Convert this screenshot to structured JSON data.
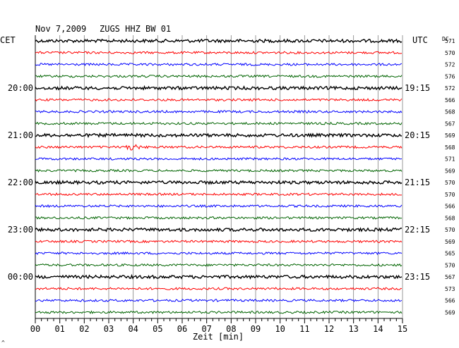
{
  "header": {
    "date": "Nov 7,2009",
    "station": "ZUGS HHZ BW 01",
    "left_tz": "CET",
    "right_tz": "UTC",
    "dc_label": "DC"
  },
  "footer": {
    "xlabel": "Zeit [min]",
    "corner_mark": "^"
  },
  "colors": {
    "cycle": [
      "#000000",
      "#ff0000",
      "#0000ff",
      "#006400"
    ],
    "grid": "#808080"
  },
  "chart_data": {
    "type": "line",
    "title": "Nov 7,2009  ZUGS HHZ BW 01",
    "xlabel": "Zeit [min]",
    "ylabel": "",
    "xlim": [
      0,
      15
    ],
    "x_ticks": [
      "00",
      "01",
      "02",
      "03",
      "04",
      "05",
      "06",
      "07",
      "08",
      "09",
      "10",
      "11",
      "12",
      "13",
      "14",
      "15"
    ],
    "grid": true,
    "trace_count": 24,
    "left_time_labels": [
      {
        "row": 4,
        "text": "20:00"
      },
      {
        "row": 8,
        "text": "21:00"
      },
      {
        "row": 12,
        "text": "22:00"
      },
      {
        "row": 16,
        "text": "23:00"
      },
      {
        "row": 20,
        "text": "00:00"
      }
    ],
    "right_time_labels": [
      {
        "row": 4,
        "text": "19:15"
      },
      {
        "row": 8,
        "text": "20:15"
      },
      {
        "row": 12,
        "text": "21:15"
      },
      {
        "row": 16,
        "text": "22:15"
      },
      {
        "row": 20,
        "text": "23:15"
      }
    ],
    "dc_offsets": [
      571,
      570,
      572,
      576,
      572,
      566,
      568,
      567,
      569,
      568,
      571,
      569,
      570,
      570,
      566,
      568,
      570,
      569,
      565,
      570,
      567,
      573,
      566,
      569
    ],
    "events": [
      {
        "row": 9,
        "minute": 3.8
      }
    ]
  }
}
